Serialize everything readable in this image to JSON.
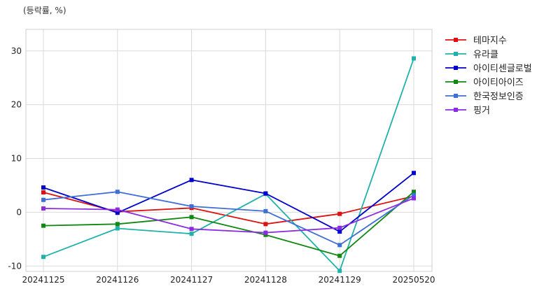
{
  "chart_data": {
    "type": "line",
    "unit_label": "(등락률, %)",
    "categories": [
      "20241125",
      "20241126",
      "20241127",
      "20241128",
      "20241129",
      "20250520"
    ],
    "y_ticks": [
      -10,
      0,
      10,
      20,
      30
    ],
    "ylim": [
      -11,
      34
    ],
    "grid": true,
    "legend_position": "right",
    "series": [
      {
        "name": "테마지수",
        "color": "#dd1111",
        "values": [
          3.7,
          0.1,
          0.8,
          -2.2,
          -0.3,
          3.0
        ]
      },
      {
        "name": "유라클",
        "color": "#20b2aa",
        "values": [
          -8.3,
          -3.0,
          -4.0,
          3.4,
          -10.9,
          28.6
        ]
      },
      {
        "name": "아이티센글로벌",
        "color": "#0000cc",
        "values": [
          4.6,
          -0.1,
          6.0,
          3.5,
          -3.6,
          7.3
        ]
      },
      {
        "name": "아이티아이즈",
        "color": "#118811",
        "values": [
          -2.5,
          -2.2,
          -0.9,
          -4.2,
          -8.1,
          3.8
        ]
      },
      {
        "name": "한국정보인증",
        "color": "#3f6fd6",
        "values": [
          2.3,
          3.8,
          1.1,
          0.2,
          -6.1,
          3.2
        ]
      },
      {
        "name": "핑거",
        "color": "#8b2be2",
        "values": [
          0.7,
          0.5,
          -3.1,
          -3.8,
          -2.9,
          2.6
        ]
      }
    ]
  }
}
